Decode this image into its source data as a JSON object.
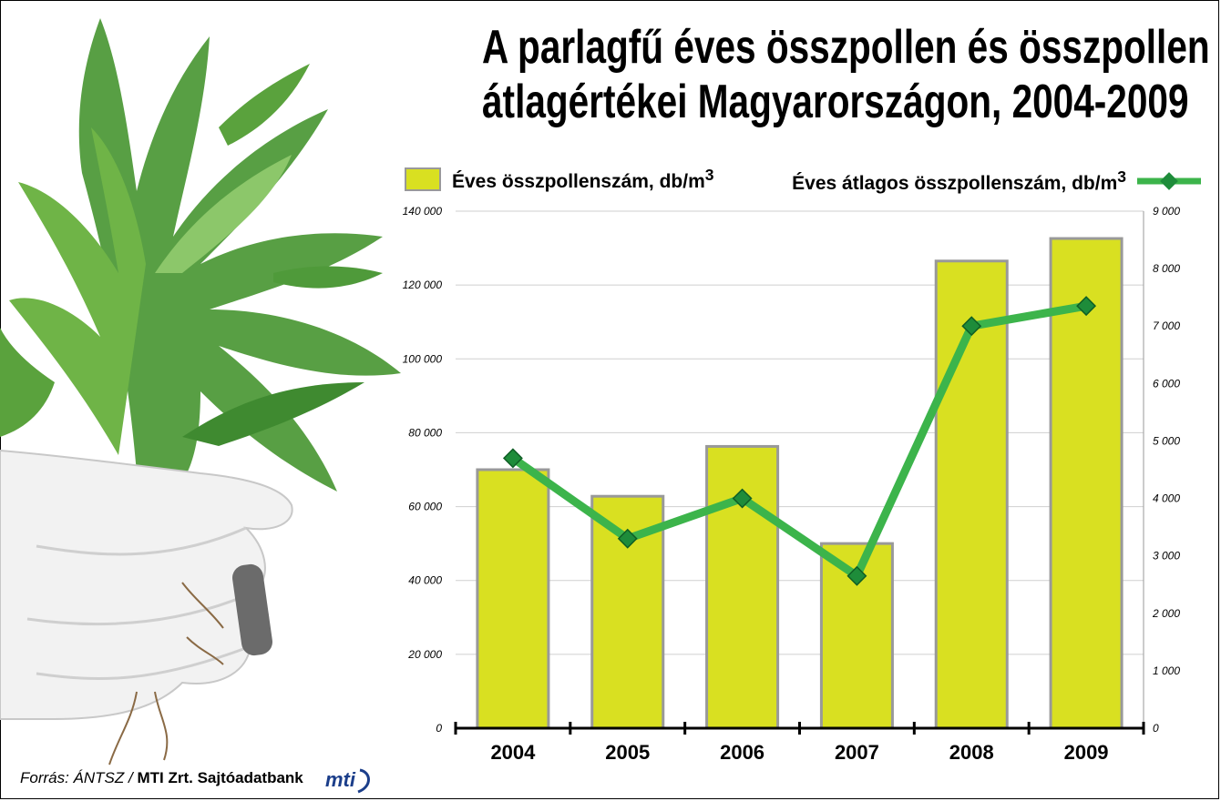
{
  "title": {
    "line1": "A parlagfű éves összpollen és összpollen",
    "line2": "átlagértékei Magyarországon, 2004-2009"
  },
  "legend": {
    "bar_label": "Éves összpollenszám, db/m",
    "line_label": "Éves átlagos összpollenszám, db/m",
    "superscript": "3"
  },
  "source": {
    "italic_part": "Forrás: ÁNTSZ /",
    "bold_part": "MTI Zrt. Sajtóadatbank",
    "logo_text": "mti"
  },
  "colors": {
    "bar_fill": "#d9e021",
    "bar_stroke": "#999999",
    "line": "#3cb44b",
    "marker": "#1e8c3a",
    "grid": "#cfcfcf"
  },
  "chart_data": {
    "type": "bar",
    "categories": [
      "2004",
      "2005",
      "2006",
      "2007",
      "2008",
      "2009"
    ],
    "series": [
      {
        "name": "Éves összpollenszám, db/m3",
        "type": "bar",
        "axis": "left",
        "values": [
          70000,
          62800,
          76300,
          50000,
          126500,
          132600
        ]
      },
      {
        "name": "Éves átlagos összpollenszám, db/m3",
        "type": "line",
        "axis": "right",
        "values": [
          4700,
          3300,
          4000,
          2650,
          7000,
          7350
        ]
      }
    ],
    "y_left": {
      "lim": [
        0,
        140000
      ],
      "ticks": [
        "0",
        "20 000",
        "40 000",
        "60 000",
        "80 000",
        "100 000",
        "120 000",
        "140 000"
      ]
    },
    "y_right": {
      "lim": [
        0,
        9000
      ],
      "ticks": [
        "0",
        "1 000",
        "2 000",
        "3 000",
        "4 000",
        "5 000",
        "6 000",
        "7 000",
        "8 000",
        "9 000"
      ]
    },
    "grid": true,
    "legend_position": "top"
  }
}
